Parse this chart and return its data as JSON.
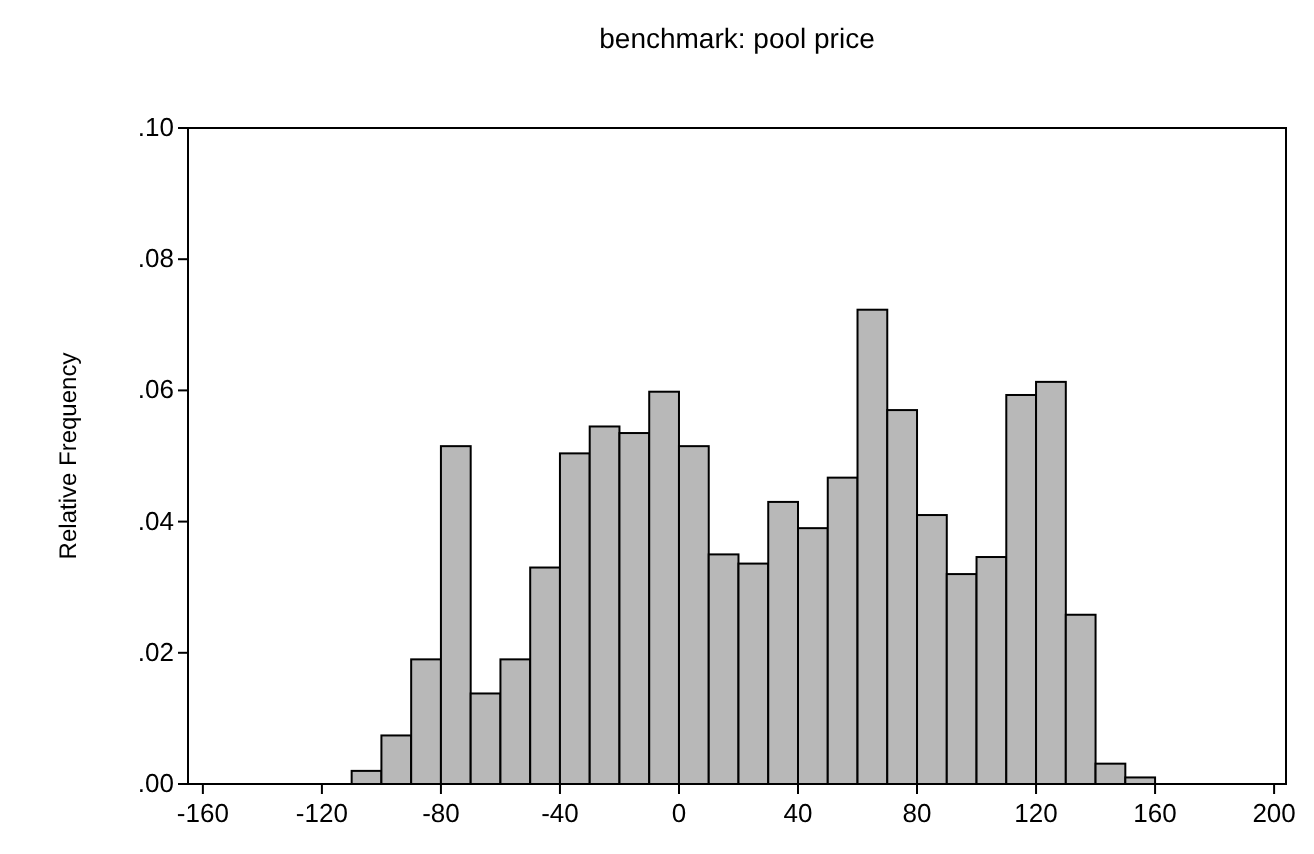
{
  "chart_data": {
    "type": "histogram",
    "title": "benchmark: pool price",
    "ylabel": "Relative Frequency",
    "bins": [
      -110,
      -100,
      -90,
      -80,
      -70,
      -60,
      -50,
      -40,
      -30,
      -20,
      -10,
      0,
      10,
      20,
      30,
      40,
      50,
      60,
      70,
      80,
      90,
      100,
      110,
      120,
      130,
      140,
      150,
      160
    ],
    "values": [
      0.002,
      0.0074,
      0.019,
      0.0515,
      0.0138,
      0.019,
      0.033,
      0.0504,
      0.0545,
      0.0535,
      0.0598,
      0.0515,
      0.035,
      0.0336,
      0.043,
      0.039,
      0.0467,
      0.0723,
      0.057,
      0.041,
      0.032,
      0.0346,
      0.0593,
      0.0613,
      0.0258,
      0.0031,
      0.001
    ],
    "color": "#b8b8b8",
    "xlim": [
      -165,
      204
    ],
    "xticks": [
      -160,
      -120,
      -80,
      -40,
      0,
      40,
      80,
      120,
      160,
      200
    ],
    "ylim": [
      0,
      0.1
    ],
    "yticks": [
      {
        "value": 0,
        "label": ".00"
      },
      {
        "value": 0.02,
        "label": ".02"
      },
      {
        "value": 0.04,
        "label": ".04"
      },
      {
        "value": 0.06,
        "label": ".06"
      },
      {
        "value": 0.08,
        "label": ".08"
      },
      {
        "value": 0.1,
        "label": ".10"
      }
    ],
    "grid": false
  }
}
